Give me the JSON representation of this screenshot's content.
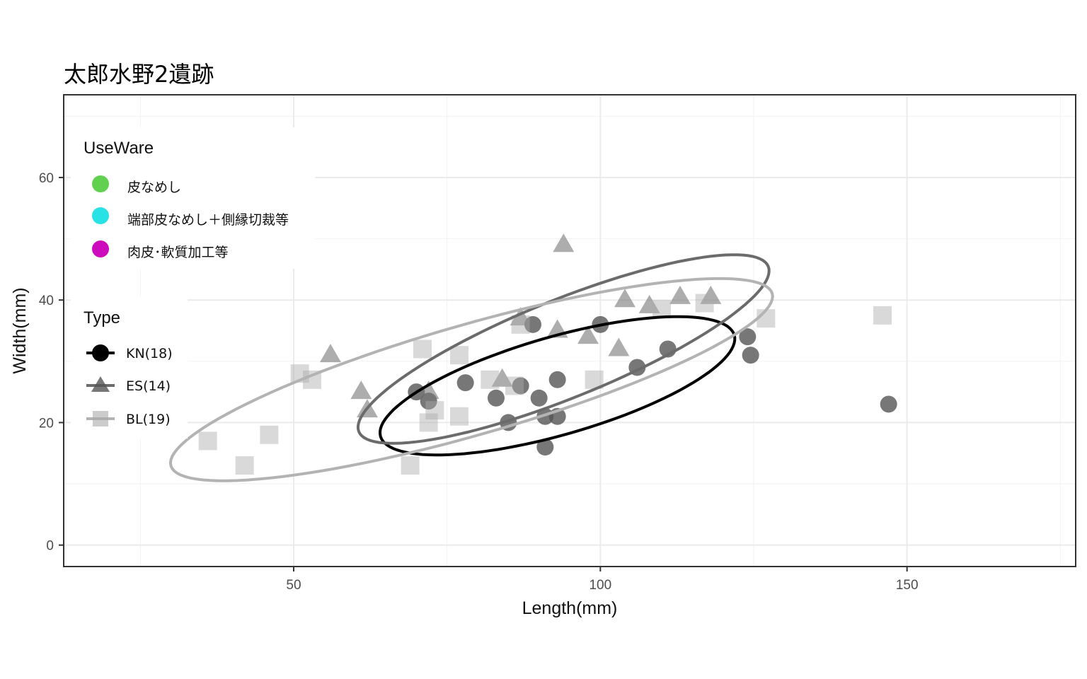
{
  "chart_data": {
    "type": "scatter",
    "title": "太郎水野2遺跡",
    "xlabel": "Length(mm)",
    "ylabel": "Width(mm)",
    "xlim": [
      12.5,
      177.5
    ],
    "ylim": [
      -3.5,
      73.5
    ],
    "x_ticks": [
      50,
      100,
      150
    ],
    "y_ticks": [
      0,
      20,
      40,
      60
    ],
    "grid": true,
    "legend_placement": "top-left inside",
    "legends": {
      "useware": {
        "title": "UseWare",
        "entries": [
          {
            "label": "皮なめし",
            "color": "#61D04F"
          },
          {
            "label": "端部皮なめし＋側縁切裁等",
            "color": "#28E2E5"
          },
          {
            "label": "肉皮･軟質加工等",
            "color": "#CD0BBC"
          }
        ]
      },
      "type": {
        "title": "Type",
        "entries": [
          {
            "label": "KN(18)",
            "shape": "circle"
          },
          {
            "label": "ES(14)",
            "shape": "triangle"
          },
          {
            "label": "BL(19)",
            "shape": "square"
          }
        ]
      }
    },
    "series": [
      {
        "type_key": "KN",
        "shape": "circle",
        "color": "#555555",
        "opacity": 0.8,
        "points": [
          [
            70,
            25
          ],
          [
            72,
            23.5
          ],
          [
            78,
            26.5
          ],
          [
            83,
            24
          ],
          [
            85,
            20
          ],
          [
            87,
            26
          ],
          [
            89,
            36
          ],
          [
            90,
            24
          ],
          [
            91,
            21
          ],
          [
            91,
            16
          ],
          [
            93,
            27
          ],
          [
            93,
            21
          ],
          [
            100,
            36
          ],
          [
            106,
            29
          ],
          [
            111,
            32
          ],
          [
            124,
            34
          ],
          [
            124.5,
            31
          ],
          [
            147,
            23
          ]
        ],
        "ellipse": {
          "cx": 93,
          "cy": 26,
          "rx": 30,
          "ry": 8,
          "angle": 16,
          "color": "#000000"
        }
      },
      {
        "type_key": "ES",
        "shape": "triangle",
        "color": "#777777",
        "opacity": 0.6,
        "points": [
          [
            56,
            31
          ],
          [
            61,
            25
          ],
          [
            62,
            22
          ],
          [
            72,
            25
          ],
          [
            84,
            27
          ],
          [
            87,
            37
          ],
          [
            93,
            35
          ],
          [
            94,
            49
          ],
          [
            98,
            34
          ],
          [
            103,
            32
          ],
          [
            104,
            40
          ],
          [
            108,
            39
          ],
          [
            113,
            40.5
          ],
          [
            118,
            40.5
          ]
        ],
        "ellipse": {
          "cx": 94,
          "cy": 32,
          "rx": 36,
          "ry": 8,
          "angle": 22,
          "color": "#6b6b6b"
        }
      },
      {
        "type_key": "BL",
        "shape": "square",
        "color": "#aaaaaa",
        "opacity": 0.45,
        "points": [
          [
            36,
            17
          ],
          [
            42,
            13
          ],
          [
            46,
            18
          ],
          [
            51,
            28
          ],
          [
            53,
            27
          ],
          [
            69,
            13
          ],
          [
            71,
            32
          ],
          [
            72,
            20
          ],
          [
            77,
            31
          ],
          [
            77,
            21
          ],
          [
            82,
            27
          ],
          [
            87,
            36
          ],
          [
            86,
            26
          ],
          [
            99,
            27
          ],
          [
            110,
            38.5
          ],
          [
            117,
            39.5
          ],
          [
            127,
            37
          ],
          [
            146,
            37.5
          ],
          [
            73,
            22
          ]
        ],
        "ellipse": {
          "cx": 79,
          "cy": 27,
          "rx": 51,
          "ry": 9,
          "angle": 16,
          "color": "#b3b3b3"
        }
      }
    ]
  }
}
